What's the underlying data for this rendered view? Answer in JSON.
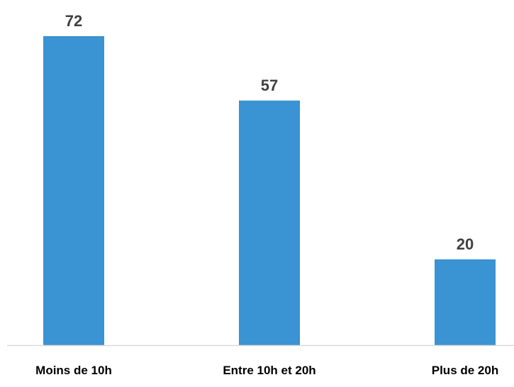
{
  "chart_data": {
    "type": "bar",
    "categories": [
      "Moins de 10h",
      "Entre 10h et 20h",
      "Plus de 20h"
    ],
    "values": [
      72,
      57,
      20
    ],
    "title": "",
    "xlabel": "",
    "ylabel": "",
    "ylim": [
      0,
      72
    ],
    "grid": false,
    "legend": "none",
    "data_labels": true,
    "bar_color": "#3A93D2",
    "axis_color": "#D9D9D9",
    "label_color": "#404040"
  }
}
